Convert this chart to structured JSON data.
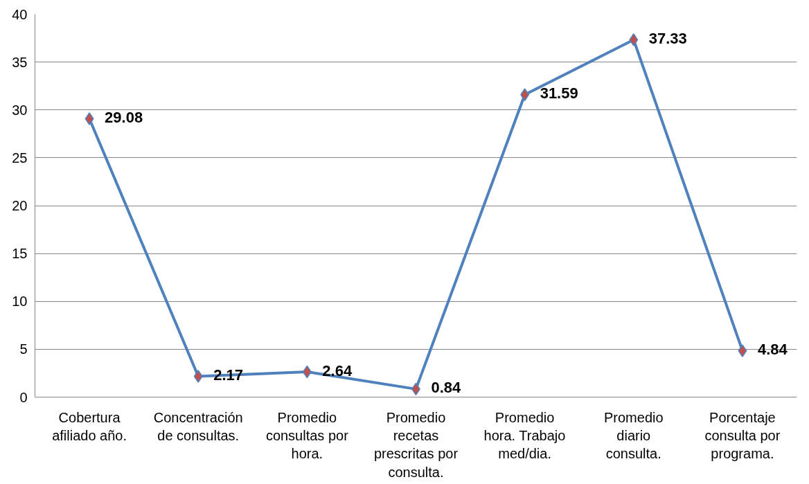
{
  "chart_data": {
    "type": "line",
    "categories": [
      "Cobertura\nafiliado año.",
      "Concentración\nde consultas.",
      "Promedio\nconsultas por\nhora.",
      "Promedio\nrecetas\nprescritas por\nconsulta.",
      "Promedio\nhora. Trabajo\nmed/dia.",
      "Promedio\ndiario\nconsulta.",
      "Porcentaje\nconsulta por\nprograma."
    ],
    "series": [
      {
        "color": "#4f81bd",
        "colors": [
          "#c0504d",
          "#c0504d",
          "#c0504d",
          "#c0504d",
          "#c0504d",
          "#c0504d",
          "#c0504d"
        ],
        "values": [
          29.08,
          2.17,
          2.64,
          0.84,
          31.59,
          37.33,
          4.84
        ]
      }
    ],
    "ylim": [
      0,
      40
    ],
    "yticks": [
      0,
      5,
      10,
      15,
      20,
      25,
      30,
      35,
      40
    ],
    "grid": "y",
    "marker": "diamond",
    "line_style": "solid",
    "data_labels": true
  }
}
